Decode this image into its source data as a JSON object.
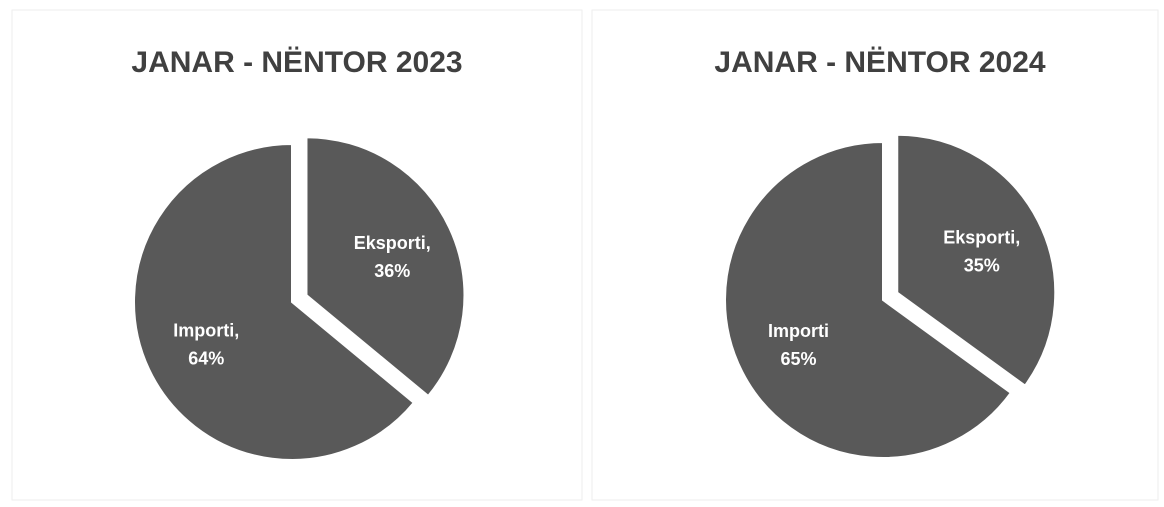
{
  "chart_data": [
    {
      "type": "pie",
      "title": "JANAR - NËNTOR 2023",
      "categories": [
        "Eksporti,",
        "Importi,"
      ],
      "values": [
        36,
        64
      ],
      "value_labels": [
        "36%",
        "64%"
      ],
      "color": "#595959",
      "explode": [
        true,
        false
      ]
    },
    {
      "type": "pie",
      "title": "JANAR - NËNTOR 2024",
      "categories": [
        "Eksporti,",
        "Importi"
      ],
      "values": [
        35,
        65
      ],
      "value_labels": [
        "35%",
        "65%"
      ],
      "color": "#595959",
      "explode": [
        true,
        false
      ]
    }
  ]
}
